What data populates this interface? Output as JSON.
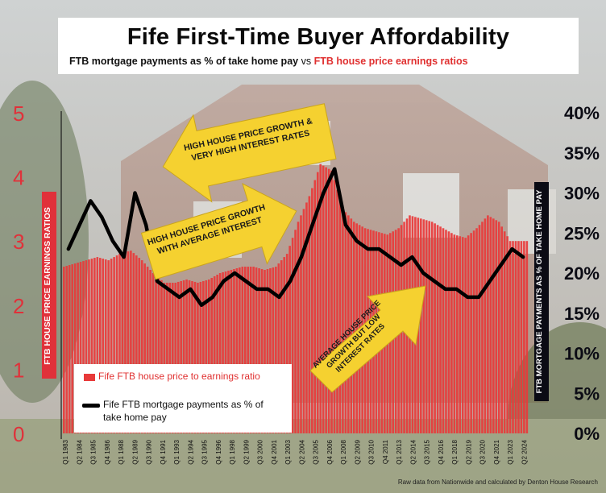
{
  "header": {
    "title": "Fife First-Time Buyer Affordability",
    "subtitle_part1": "FTB mortgage payments as % of take home pay",
    "subtitle_part2": " vs ",
    "subtitle_part3": "FTB house price earnings ratios"
  },
  "annotations": {
    "arrow1_line1": "HIGH HOUSE PRICE GROWTH &",
    "arrow1_line2": "VERY HIGH INTEREST RATES",
    "arrow2_line1": "HIGH HOUSE PRICE GROWTH",
    "arrow2_line2": "WITH AVERAGE INTEREST",
    "arrow3_line1": "AVERAGE HOUSE PRICE",
    "arrow3_line2": "GROWTH BUT LOW",
    "arrow3_line3": "INTEREST RATES"
  },
  "credit": "Raw data from Nationwide and calculated by Denton House Research",
  "colors": {
    "bar": "#e83a3a",
    "line": "#000000",
    "arrow": "#f5d130",
    "left_axis": "#e0313a",
    "right_axis": "#0b0b14"
  },
  "chart_data": {
    "type": "bar",
    "title": "Fife First-Time Buyer Affordability",
    "left_axis": {
      "label": "FTB HOUSE PRICE EARNINGS RATIOS",
      "range": [
        0,
        5
      ],
      "ticks": [
        "0",
        "1",
        "2",
        "3",
        "4",
        "5"
      ]
    },
    "right_axis": {
      "label": "FTB MORTGAGE PAYMENTS AS % OF TAKE HOME PAY",
      "range": [
        0,
        40
      ],
      "ticks": [
        "0%",
        "5%",
        "10%",
        "15%",
        "20%",
        "25%",
        "30%",
        "35%",
        "40%"
      ]
    },
    "x_tick_labels": [
      "Q1 1983",
      "Q2 1984",
      "Q3 1985",
      "Q4 1986",
      "Q1 1988",
      "Q2 1989",
      "Q3 1990",
      "Q4 1991",
      "Q1 1993",
      "Q2 1994",
      "Q3 1995",
      "Q4 1996",
      "Q1 1998",
      "Q2 1999",
      "Q3 2000",
      "Q4 2001",
      "Q1 2003",
      "Q2 2004",
      "Q3 2005",
      "Q4 2006",
      "Q1 2008",
      "Q2 2009",
      "Q3 2010",
      "Q4 2011",
      "Q1 2013",
      "Q2 2014",
      "Q3 2015",
      "Q4 2016",
      "Q1 2018",
      "Q2 2019",
      "Q3 2020",
      "Q4 2021",
      "Q1 2023",
      "Q2 2024"
    ],
    "legend_position": "bottom-left",
    "series": [
      {
        "name": "Fife FTB house price to earnings ratio",
        "type": "bar",
        "axis": "left",
        "x": [
          1983,
          1984,
          1985,
          1986,
          1987,
          1988,
          1989,
          1990,
          1991,
          1992,
          1993,
          1994,
          1995,
          1996,
          1997,
          1998,
          1999,
          2000,
          2001,
          2002,
          2003,
          2004,
          2005,
          2006,
          2007,
          2008,
          2009,
          2010,
          2011,
          2012,
          2013,
          2014,
          2015,
          2016,
          2017,
          2018,
          2019,
          2020,
          2021,
          2022,
          2023,
          2024
        ],
        "values": [
          2.6,
          2.65,
          2.7,
          2.75,
          2.7,
          2.8,
          2.85,
          2.7,
          2.5,
          2.35,
          2.35,
          2.4,
          2.35,
          2.4,
          2.5,
          2.55,
          2.6,
          2.6,
          2.55,
          2.6,
          2.8,
          3.3,
          3.7,
          4.2,
          4.1,
          3.5,
          3.3,
          3.2,
          3.15,
          3.1,
          3.2,
          3.4,
          3.35,
          3.3,
          3.2,
          3.1,
          3.05,
          3.2,
          3.4,
          3.3,
          3.0,
          3.0
        ]
      },
      {
        "name": "Fife FTB mortgage payments as % of take home pay",
        "type": "line",
        "axis": "right",
        "x": [
          1983,
          1984,
          1985,
          1986,
          1987,
          1988,
          1989,
          1990,
          1991,
          1992,
          1993,
          1994,
          1995,
          1996,
          1997,
          1998,
          1999,
          2000,
          2001,
          2002,
          2003,
          2004,
          2005,
          2006,
          2007,
          2008,
          2009,
          2010,
          2011,
          2012,
          2013,
          2014,
          2015,
          2016,
          2017,
          2018,
          2019,
          2020,
          2021,
          2022,
          2023,
          2024
        ],
        "values": [
          23,
          26,
          29,
          27,
          24,
          22,
          30,
          26,
          19,
          18,
          17,
          18,
          16,
          17,
          19,
          20,
          19,
          18,
          18,
          17,
          19,
          22,
          26,
          30,
          33,
          26,
          24,
          23,
          23,
          22,
          21,
          22,
          20,
          19,
          18,
          18,
          17,
          17,
          19,
          21,
          23,
          22
        ]
      }
    ]
  }
}
